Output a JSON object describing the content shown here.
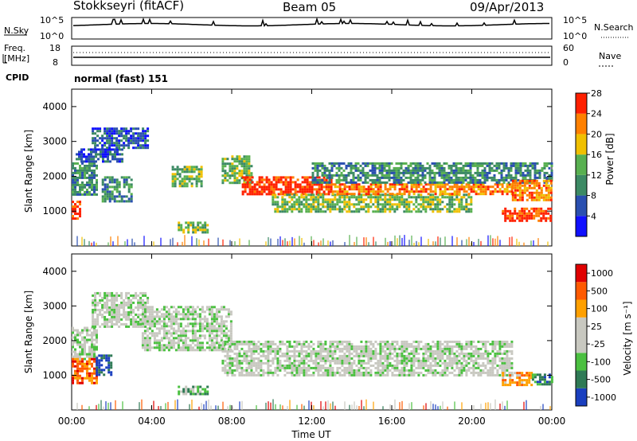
{
  "header": {
    "station": "Stokkseyri (fitACF)",
    "beam": "Beam 05",
    "date": "09/Apr/2013"
  },
  "chart_data": [
    {
      "type": "line",
      "panel": "noise",
      "left_label": "N.Sky",
      "right_label": "N.Search",
      "left_ticks": [
        "10^5",
        "10^0"
      ],
      "right_ticks": [
        "10^5",
        "10^0"
      ],
      "description_series": [
        "N.Sky (solid)",
        "N.Search (dotted)"
      ]
    },
    {
      "type": "line",
      "panel": "frequency",
      "left_label_lines": [
        "Freq.",
        "[MHz]"
      ],
      "right_label": "Nave",
      "left_ticks": [
        "18",
        "8"
      ],
      "right_ticks": [
        "60",
        "0"
      ],
      "cpid_label": "CPID",
      "cpid_text": "normal (fast) 151"
    },
    {
      "type": "heatmap",
      "panel": "power",
      "ylabel": "Slant Range [km]",
      "ylim": [
        0,
        4500
      ],
      "yticks": [
        1000,
        2000,
        3000,
        4000
      ],
      "xlim_hours": [
        0,
        24
      ],
      "colorbar": {
        "label": "Power [dB]",
        "ticks": [
          "4",
          "8",
          "12",
          "16",
          "20",
          "24",
          "28"
        ],
        "colors": [
          "#1010ff",
          "#2a4fb0",
          "#3c8a64",
          "#58b050",
          "#f0c000",
          "#ff8000",
          "#ff2000"
        ]
      },
      "regions": [
        {
          "t0": 0.0,
          "t1": 0.4,
          "r0": 800,
          "r1": 1300,
          "level": 6
        },
        {
          "t0": 0.0,
          "t1": 1.2,
          "r0": 1500,
          "r1": 2400,
          "level": 2
        },
        {
          "t0": 0.2,
          "t1": 2.5,
          "r0": 2400,
          "r1": 2800,
          "level": 1
        },
        {
          "t0": 1.0,
          "t1": 3.8,
          "r0": 2800,
          "r1": 3400,
          "level": 1
        },
        {
          "t0": 1.5,
          "t1": 3.0,
          "r0": 1300,
          "r1": 2000,
          "level": 2
        },
        {
          "t0": 5.3,
          "t1": 6.8,
          "r0": 400,
          "r1": 700,
          "level": 3
        },
        {
          "t0": 5.0,
          "t1": 6.5,
          "r0": 1700,
          "r1": 2300,
          "level": 3
        },
        {
          "t0": 7.5,
          "t1": 9.0,
          "r0": 1800,
          "r1": 2600,
          "level": 3
        },
        {
          "t0": 8.5,
          "t1": 13.0,
          "r0": 1500,
          "r1": 2000,
          "level": 6
        },
        {
          "t0": 10.0,
          "t1": 20.0,
          "r0": 1000,
          "r1": 1500,
          "level": 3
        },
        {
          "t0": 13.0,
          "t1": 22.0,
          "r0": 1500,
          "r1": 1800,
          "level": 5
        },
        {
          "t0": 12.0,
          "t1": 24.0,
          "r0": 1800,
          "r1": 2400,
          "level": 2
        },
        {
          "t0": 21.5,
          "t1": 24.0,
          "r0": 700,
          "r1": 1100,
          "level": 6
        },
        {
          "t0": 22.0,
          "t1": 24.0,
          "r0": 1300,
          "r1": 1900,
          "level": 5
        }
      ]
    },
    {
      "type": "heatmap",
      "panel": "velocity",
      "ylabel": "Slant Range [km]",
      "xlabel": "Time UT",
      "ylim": [
        0,
        4500
      ],
      "yticks": [
        1000,
        2000,
        3000,
        4000
      ],
      "xticks": [
        "00:00",
        "04:00",
        "08:00",
        "12:00",
        "16:00",
        "20:00",
        "00:00"
      ],
      "xlim_hours": [
        0,
        24
      ],
      "colorbar": {
        "label": "Velocity [m s⁻¹]",
        "ticks": [
          "1000",
          "500",
          "100",
          "25",
          "-25",
          "-100",
          "-500",
          "-1000"
        ],
        "colors": [
          "#1a3fbf",
          "#2f7a55",
          "#4bc040",
          "#c8c8c0",
          "#c8c8c0",
          "#ffa000",
          "#ff5a00",
          "#e00000"
        ]
      },
      "regions": [
        {
          "t0": 0.0,
          "t1": 1.2,
          "r0": 1500,
          "r1": 2400,
          "level": 3
        },
        {
          "t0": 1.0,
          "t1": 3.8,
          "r0": 2400,
          "r1": 3400,
          "level": 3
        },
        {
          "t0": 3.5,
          "t1": 8.0,
          "r0": 1700,
          "r1": 3000,
          "level": 3
        },
        {
          "t0": 7.5,
          "t1": 22.0,
          "r0": 1000,
          "r1": 2000,
          "level": 3
        },
        {
          "t0": 0.0,
          "t1": 1.2,
          "r0": 800,
          "r1": 1500,
          "level": 6
        },
        {
          "t0": 1.2,
          "t1": 2.0,
          "r0": 1000,
          "r1": 1600,
          "level": 0
        },
        {
          "t0": 5.3,
          "t1": 6.8,
          "r0": 450,
          "r1": 700,
          "level": 2
        },
        {
          "t0": 21.5,
          "t1": 23.0,
          "r0": 700,
          "r1": 1100,
          "level": 5
        },
        {
          "t0": 23.0,
          "t1": 24.0,
          "r0": 750,
          "r1": 1050,
          "level": 1
        }
      ]
    }
  ]
}
